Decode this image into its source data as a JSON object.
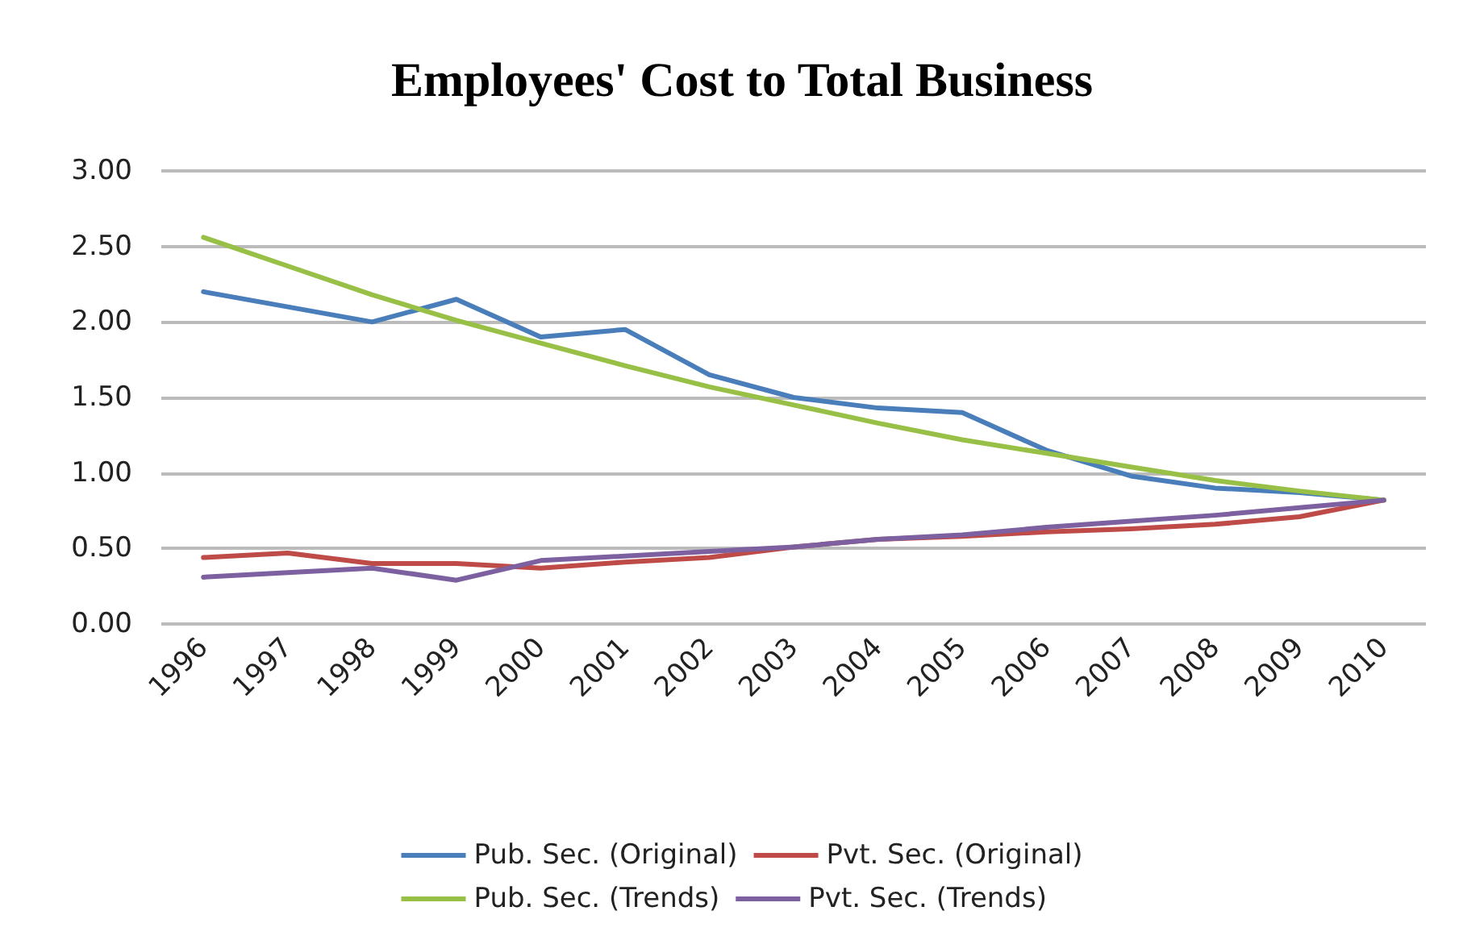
{
  "chart_data": {
    "type": "line",
    "title": "Employees' Cost to Total Business",
    "categories": [
      "1996",
      "1997",
      "1998",
      "1999",
      "2000",
      "2001",
      "2002",
      "2003",
      "2004",
      "2005",
      "2006",
      "2007",
      "2008",
      "2009",
      "2010"
    ],
    "series": [
      {
        "name": "Pub. Sec. (Original)",
        "color": "#4a7ebb",
        "values": [
          2.2,
          2.1,
          2.0,
          2.15,
          1.9,
          1.95,
          1.65,
          1.5,
          1.43,
          1.4,
          1.15,
          0.98,
          0.9,
          0.87,
          0.82
        ]
      },
      {
        "name": "Pvt. Sec. (Original)",
        "color": "#be4b48",
        "values": [
          0.44,
          0.47,
          0.4,
          0.4,
          0.37,
          0.41,
          0.44,
          0.51,
          0.56,
          0.58,
          0.61,
          0.63,
          0.66,
          0.71,
          0.82
        ]
      },
      {
        "name": "Pub. Sec. (Trends)",
        "color": "#98c046",
        "values": [
          2.56,
          2.37,
          2.18,
          2.01,
          1.86,
          1.71,
          1.57,
          1.45,
          1.33,
          1.22,
          1.13,
          1.04,
          0.95,
          0.88,
          0.82
        ]
      },
      {
        "name": "Pvt. Sec. (Trends)",
        "color": "#7d60a0",
        "values": [
          0.31,
          0.34,
          0.37,
          0.29,
          0.42,
          0.45,
          0.48,
          0.51,
          0.56,
          0.59,
          0.64,
          0.68,
          0.72,
          0.77,
          0.82
        ]
      }
    ],
    "ylim": [
      0,
      3
    ],
    "yticks": [
      {
        "value": 0,
        "label": "0.00"
      },
      {
        "value": 0.5,
        "label": "0.50"
      },
      {
        "value": 1,
        "label": "1.00"
      },
      {
        "value": 1.5,
        "label": "1.50"
      },
      {
        "value": 2,
        "label": "2.00"
      },
      {
        "value": 2.5,
        "label": "2.50"
      },
      {
        "value": 3,
        "label": "3.00"
      }
    ],
    "grid": "y",
    "legend": "bottom",
    "marker": "none",
    "line_style": "solid"
  }
}
